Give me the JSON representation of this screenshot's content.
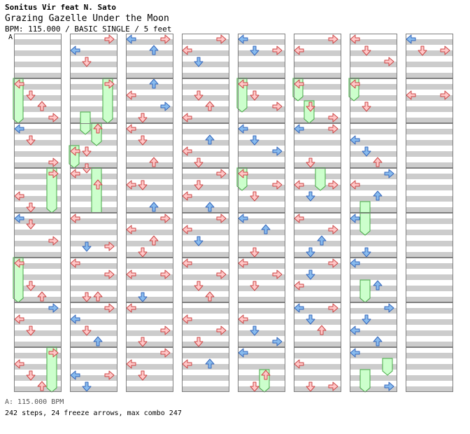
{
  "header": {
    "artist": "Sonitus Vir feat N. Sato",
    "title": "Grazing Gazelle Under the Moon",
    "info": "BPM: 115.000 / BASIC SINGLE / 5 feet",
    "marker": "A"
  },
  "footer": {
    "bpm": "A: 115.000 BPM",
    "stats": "242 steps, 24 freeze arrows, max combo 247"
  },
  "colors": {
    "band": "#cccccc",
    "border": "#808080",
    "arrow_red_fill": "#ffc8c8",
    "arrow_red_stroke": "#cc4444",
    "arrow_blue_fill": "#88bbee",
    "arrow_blue_stroke": "#3366bb",
    "freeze_fill": "#ccffcc",
    "freeze_stroke": "#44aa44",
    "bpm_marker": "#5aa0f0"
  },
  "icons": {
    "left": "left-arrow-icon",
    "down": "down-arrow-icon",
    "up": "up-arrow-icon",
    "right": "right-arrow-icon",
    "freeze": "freeze-arrow-icon"
  },
  "chart_data": {
    "type": "step-chart",
    "lanes": [
      "left",
      "down",
      "up",
      "right"
    ],
    "measures_per_column": 8,
    "measures": [
      {
        "notes": []
      },
      {
        "notes": [
          [
            "L",
            0,
            "r"
          ],
          [
            "D",
            2,
            "r"
          ],
          [
            "U",
            4,
            "r"
          ],
          [
            "R",
            6,
            "r"
          ]
        ],
        "freezes": [
          [
            "L",
            0,
            8
          ]
        ]
      },
      {
        "notes": [
          [
            "L",
            0,
            "b"
          ],
          [
            "D",
            2,
            "r"
          ],
          [
            "R",
            6,
            "r"
          ]
        ]
      },
      {
        "notes": [
          [
            "L",
            4,
            "r"
          ],
          [
            "D",
            6,
            "r"
          ],
          [
            "U",
            10,
            "r"
          ],
          [
            "R",
            0,
            "r"
          ]
        ],
        "freezes": [
          [
            "R",
            0,
            8
          ]
        ]
      },
      {
        "notes": [
          [
            "L",
            0,
            "b"
          ],
          [
            "D",
            1,
            "r"
          ],
          [
            "R",
            4,
            "r"
          ]
        ]
      },
      {
        "notes": [
          [
            "L",
            0,
            "r"
          ],
          [
            "D",
            4,
            "r"
          ],
          [
            "U",
            6,
            "r"
          ],
          [
            "R",
            8,
            "r"
          ]
        ],
        "freezes": [
          [
            "L",
            0,
            8
          ]
        ]
      },
      {
        "notes": [
          [
            "L",
            2,
            "r"
          ],
          [
            "D",
            4,
            "r"
          ],
          [
            "R",
            0,
            "b"
          ]
        ]
      },
      {
        "notes": [
          [
            "L",
            2,
            "r"
          ],
          [
            "D",
            4,
            "r"
          ],
          [
            "U",
            6,
            "r"
          ],
          [
            "R",
            0,
            "r"
          ]
        ],
        "freezes": [
          [
            "R",
            0,
            8
          ]
        ]
      },
      {
        "notes": [
          [
            "L",
            2,
            "b"
          ],
          [
            "D",
            4,
            "r"
          ],
          [
            "R",
            0,
            "r"
          ]
        ]
      },
      {
        "notes": [
          [
            "R",
            0,
            "r"
          ]
        ],
        "freezes": [
          [
            "R",
            0,
            8
          ]
        ]
      },
      {
        "notes": [
          [
            "L",
            4,
            "r"
          ],
          [
            "D",
            4,
            "r"
          ],
          [
            "U",
            0,
            "r"
          ]
        ],
        "freezes": [
          [
            "D",
            -2,
            4
          ],
          [
            "U",
            0,
            4
          ],
          [
            "L",
            4,
            4
          ]
        ]
      },
      {
        "notes": [
          [
            "L",
            0,
            "r"
          ],
          [
            "D",
            -1,
            "r"
          ],
          [
            "U",
            2,
            "r"
          ]
        ],
        "freezes": [
          [
            "U",
            0,
            10
          ]
        ]
      },
      {
        "notes": [
          [
            "L",
            0,
            "r"
          ],
          [
            "D",
            5,
            "b"
          ],
          [
            "R",
            5,
            "r"
          ]
        ]
      },
      {
        "notes": [
          [
            "L",
            0,
            "r"
          ],
          [
            "D",
            6,
            "r"
          ],
          [
            "U",
            6,
            "r"
          ],
          [
            "R",
            2,
            "r"
          ]
        ]
      },
      {
        "notes": [
          [
            "L",
            2,
            "b"
          ],
          [
            "D",
            4,
            "r"
          ],
          [
            "U",
            6,
            "b"
          ],
          [
            "R",
            0,
            "r"
          ]
        ]
      },
      {
        "notes": [
          [
            "L",
            4,
            "b"
          ],
          [
            "D",
            6,
            "b"
          ],
          [
            "R",
            4,
            "r"
          ]
        ]
      },
      {
        "notes": [
          [
            "L",
            0,
            "b"
          ],
          [
            "U",
            2,
            "b"
          ],
          [
            "R",
            0,
            "r"
          ]
        ]
      },
      {
        "notes": [
          [
            "L",
            2,
            "r"
          ],
          [
            "D",
            6,
            "r"
          ],
          [
            "U",
            0,
            "b"
          ],
          [
            "R",
            4,
            "b"
          ]
        ]
      },
      {
        "notes": [
          [
            "L",
            0,
            "r"
          ],
          [
            "D",
            2,
            "r"
          ],
          [
            "U",
            6,
            "r"
          ]
        ]
      },
      {
        "notes": [
          [
            "L",
            2,
            "r"
          ],
          [
            "D",
            2,
            "r"
          ],
          [
            "U",
            6,
            "b"
          ]
        ]
      },
      {
        "notes": [
          [
            "L",
            2,
            "r"
          ],
          [
            "D",
            6,
            "r"
          ],
          [
            "U",
            4,
            "r"
          ],
          [
            "R",
            0,
            "r"
          ]
        ]
      },
      {
        "notes": [
          [
            "L",
            2,
            "r"
          ],
          [
            "D",
            6,
            "b"
          ],
          [
            "R",
            2,
            "r"
          ]
        ]
      },
      {
        "notes": [
          [
            "L",
            0,
            "r"
          ],
          [
            "D",
            6,
            "r"
          ],
          [
            "R",
            4,
            "r"
          ]
        ]
      },
      {
        "notes": [
          [
            "L",
            2,
            "r"
          ],
          [
            "D",
            4,
            "r"
          ],
          [
            "R",
            0,
            "r"
          ]
        ]
      },
      {
        "notes": [
          [
            "L",
            2,
            "r"
          ],
          [
            "D",
            4,
            "b"
          ],
          [
            "R",
            0,
            "r"
          ]
        ]
      },
      {
        "notes": [
          [
            "L",
            6,
            "r"
          ],
          [
            "D",
            2,
            "r"
          ],
          [
            "U",
            4,
            "r"
          ],
          [
            "R",
            8,
            "r"
          ]
        ]
      },
      {
        "notes": [
          [
            "L",
            4,
            "r"
          ],
          [
            "D",
            6,
            "r"
          ],
          [
            "U",
            2,
            "b"
          ]
        ]
      },
      {
        "notes": [
          [
            "L",
            4,
            "r"
          ],
          [
            "D",
            2,
            "r"
          ],
          [
            "U",
            6,
            "b"
          ],
          [
            "R",
            0,
            "r"
          ]
        ]
      },
      {
        "notes": [
          [
            "L",
            2,
            "r"
          ],
          [
            "D",
            4,
            "b"
          ],
          [
            "R",
            0,
            "r"
          ]
        ]
      },
      {
        "notes": [
          [
            "L",
            0,
            "r"
          ],
          [
            "D",
            4,
            "r"
          ],
          [
            "U",
            6,
            "r"
          ],
          [
            "R",
            2,
            "r"
          ]
        ]
      },
      {
        "notes": [
          [
            "L",
            2,
            "r"
          ],
          [
            "D",
            6,
            "r"
          ],
          [
            "R",
            4,
            "r"
          ]
        ]
      },
      {
        "notes": [
          [
            "L",
            2,
            "r"
          ],
          [
            "U",
            2,
            "b"
          ]
        ]
      },
      {
        "notes": [
          [
            "L",
            0,
            "b"
          ],
          [
            "D",
            2,
            "b"
          ],
          [
            "R",
            2,
            "r"
          ]
        ]
      },
      {
        "notes": [
          [
            "L",
            0,
            "r"
          ],
          [
            "D",
            2,
            "r"
          ],
          [
            "R",
            4,
            "r"
          ]
        ],
        "freezes": [
          [
            "L",
            0,
            6
          ]
        ]
      },
      {
        "notes": [
          [
            "L",
            0,
            "b"
          ],
          [
            "D",
            2,
            "b"
          ],
          [
            "R",
            4,
            "b"
          ]
        ]
      },
      {
        "notes": [
          [
            "L",
            0,
            "r"
          ],
          [
            "D",
            4,
            "r"
          ],
          [
            "R",
            2,
            "r"
          ]
        ],
        "freezes": [
          [
            "L",
            0,
            4
          ]
        ]
      },
      {
        "notes": [
          [
            "L",
            0,
            "b"
          ],
          [
            "D",
            6,
            "r"
          ],
          [
            "U",
            2,
            "b"
          ]
        ]
      },
      {
        "notes": [
          [
            "L",
            0,
            "r"
          ],
          [
            "D",
            4,
            "r"
          ],
          [
            "R",
            2,
            "r"
          ]
        ]
      },
      {
        "notes": [
          [
            "L",
            2,
            "r"
          ],
          [
            "D",
            4,
            "b"
          ],
          [
            "R",
            6,
            "b"
          ]
        ]
      },
      {
        "notes": [
          [
            "L",
            0,
            "b"
          ],
          [
            "D",
            6,
            "r"
          ],
          [
            "U",
            4,
            "r"
          ]
        ],
        "freezes": [
          [
            "U",
            4,
            4
          ]
        ]
      },
      {
        "notes": [
          [
            "L",
            2,
            "r"
          ],
          [
            "R",
            0,
            "r"
          ]
        ]
      },
      {
        "notes": [
          [
            "L",
            0,
            "r"
          ],
          [
            "D",
            4,
            "r"
          ],
          [
            "R",
            6,
            "r"
          ]
        ],
        "freezes": [
          [
            "L",
            0,
            4
          ],
          [
            "D",
            4,
            4
          ]
        ]
      },
      {
        "notes": [
          [
            "L",
            0,
            "b"
          ],
          [
            "D",
            6,
            "r"
          ],
          [
            "R",
            0,
            "r"
          ]
        ]
      },
      {
        "notes": [
          [
            "L",
            2,
            "r"
          ],
          [
            "D",
            4,
            "b"
          ],
          [
            "R",
            2,
            "r"
          ]
        ],
        "freezes": [
          [
            "U",
            0,
            4
          ]
        ]
      },
      {
        "notes": [
          [
            "L",
            0,
            "r"
          ],
          [
            "D",
            6,
            "b"
          ],
          [
            "U",
            4,
            "b"
          ],
          [
            "R",
            2,
            "r"
          ]
        ]
      },
      {
        "notes": [
          [
            "L",
            4,
            "r"
          ],
          [
            "D",
            2,
            "b"
          ],
          [
            "R",
            0,
            "r"
          ]
        ]
      },
      {
        "notes": [
          [
            "L",
            0,
            "b"
          ],
          [
            "D",
            2,
            "b"
          ],
          [
            "U",
            4,
            "r"
          ],
          [
            "R",
            0,
            "r"
          ]
        ]
      },
      {
        "notes": [
          [
            "L",
            2,
            "r"
          ],
          [
            "D",
            6,
            "r"
          ],
          [
            "R",
            6,
            "r"
          ]
        ]
      },
      {
        "notes": [
          [
            "L",
            0,
            "r"
          ],
          [
            "D",
            2,
            "r"
          ],
          [
            "R",
            4,
            "r"
          ]
        ]
      },
      {
        "notes": [
          [
            "L",
            0,
            "r"
          ],
          [
            "D",
            4,
            "r"
          ]
        ],
        "freezes": [
          [
            "L",
            0,
            4
          ]
        ]
      },
      {
        "notes": [
          [
            "L",
            2,
            "b"
          ],
          [
            "D",
            4,
            "b"
          ],
          [
            "U",
            6,
            "r"
          ]
        ]
      },
      {
        "notes": [
          [
            "L",
            2,
            "r"
          ],
          [
            "U",
            4,
            "b"
          ],
          [
            "R",
            0,
            "b"
          ]
        ],
        "freezes": [
          [
            "D",
            6,
            4
          ]
        ]
      },
      {
        "notes": [
          [
            "L",
            0,
            "b"
          ],
          [
            "D",
            6,
            "b"
          ],
          [
            "U",
            8,
            "r"
          ]
        ],
        "freezes": [
          [
            "D",
            0,
            4
          ]
        ]
      },
      {
        "notes": [
          [
            "L",
            0,
            "b"
          ],
          [
            "D",
            8,
            "r"
          ],
          [
            "U",
            4,
            "b"
          ]
        ],
        "freezes": [
          [
            "D",
            4,
            4
          ]
        ]
      },
      {
        "notes": [
          [
            "L",
            4,
            "b"
          ],
          [
            "D",
            2,
            "b"
          ],
          [
            "U",
            6,
            "b"
          ],
          [
            "R",
            0,
            "b"
          ]
        ],
        "freezes": [
          [
            "D",
            8,
            4
          ]
        ]
      },
      {
        "notes": [
          [
            "L",
            0,
            "b"
          ],
          [
            "R",
            6,
            "b"
          ]
        ],
        "freezes": [
          [
            "D",
            4,
            4
          ],
          [
            "R",
            2,
            3
          ]
        ]
      },
      {
        "notes": [
          [
            "L",
            0,
            "b"
          ],
          [
            "D",
            2,
            "r"
          ],
          [
            "R",
            2,
            "r"
          ]
        ]
      },
      {
        "notes": [
          [
            "L",
            2,
            "r"
          ],
          [
            "R",
            2,
            "r"
          ]
        ]
      },
      {
        "notes": []
      },
      {
        "notes": []
      },
      {
        "notes": []
      },
      {
        "notes": []
      },
      {
        "notes": []
      },
      {
        "notes": []
      }
    ]
  }
}
